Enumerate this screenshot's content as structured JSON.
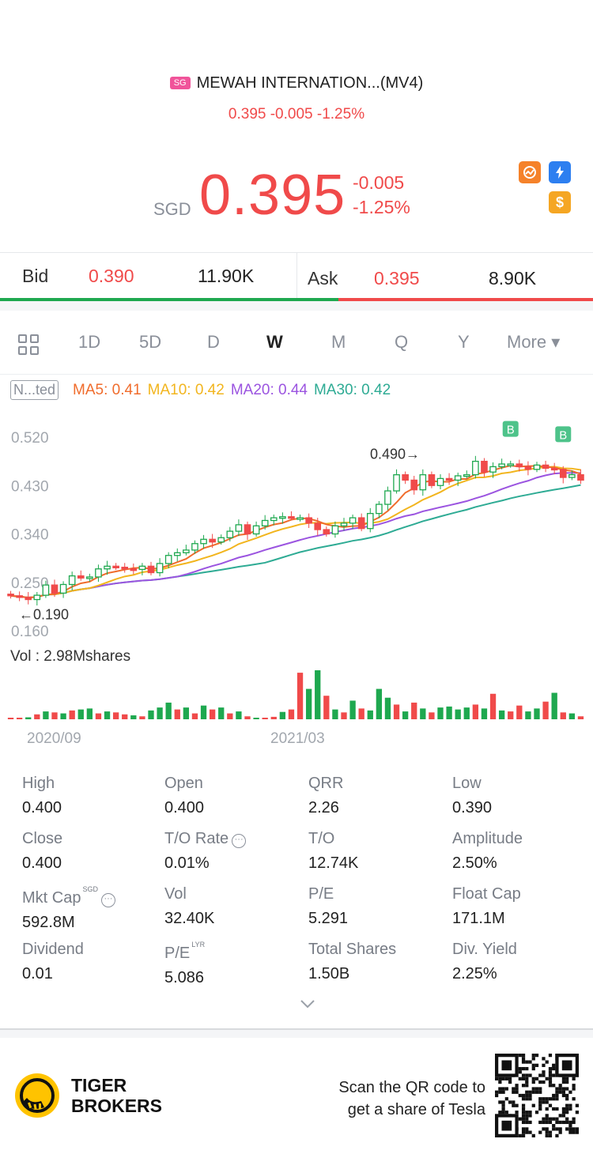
{
  "header": {
    "market_badge": "SG",
    "title": "MEWAH INTERNATION...(MV4)",
    "sub_price": "0.395 -0.005 -1.25%"
  },
  "quote": {
    "currency": "SGD",
    "price": "0.395",
    "change": "-0.005",
    "change_pct": "-1.25%"
  },
  "header_icons": [
    "chart-icon",
    "lightning-icon",
    "dollar-icon"
  ],
  "bid": {
    "label": "Bid",
    "price": "0.390",
    "volume": "11.90K"
  },
  "ask": {
    "label": "Ask",
    "price": "0.395",
    "volume": "8.90K"
  },
  "bid_ask_ratio": 0.571,
  "tabs": [
    {
      "label": "1D"
    },
    {
      "label": "5D"
    },
    {
      "label": "D"
    },
    {
      "label": "W"
    },
    {
      "label": "M"
    },
    {
      "label": "Q"
    },
    {
      "label": "Y"
    },
    {
      "label": "More ▾"
    }
  ],
  "active_tab": "W",
  "ma": {
    "adjust_label": "N...ted",
    "ma5": "MA5: 0.41",
    "ma10": "MA10: 0.42",
    "ma20": "MA20: 0.44",
    "ma30": "MA30: 0.42"
  },
  "colors": {
    "up": "#1ea84f",
    "down": "#f04a4a",
    "ma5": "#f06c2c",
    "ma10": "#f2b51e",
    "ma20": "#9b54e0",
    "ma30": "#2eab94"
  },
  "chart_data": {
    "type": "candlestick",
    "y_ticks": [
      "0.520",
      "0.430",
      "0.340",
      "0.250",
      "0.160"
    ],
    "ylim": [
      0.16,
      0.52
    ],
    "high_label": "0.490",
    "low_label": "0.190",
    "x_ticks": [
      "2020/09",
      "2021/03"
    ],
    "volume_label": "Vol  : 2.98Mshares",
    "trade_markers": [
      "B",
      "B"
    ],
    "weeks": 66,
    "closes": [
      0.225,
      0.222,
      0.218,
      0.226,
      0.245,
      0.23,
      0.246,
      0.262,
      0.258,
      0.26,
      0.275,
      0.28,
      0.278,
      0.275,
      0.274,
      0.28,
      0.268,
      0.285,
      0.3,
      0.305,
      0.31,
      0.322,
      0.33,
      0.325,
      0.333,
      0.345,
      0.357,
      0.34,
      0.355,
      0.365,
      0.37,
      0.372,
      0.37,
      0.37,
      0.36,
      0.348,
      0.34,
      0.355,
      0.36,
      0.37,
      0.35,
      0.378,
      0.395,
      0.42,
      0.45,
      0.44,
      0.422,
      0.45,
      0.43,
      0.443,
      0.44,
      0.448,
      0.45,
      0.475,
      0.455,
      0.465,
      0.47,
      0.47,
      0.465,
      0.46,
      0.468,
      0.462,
      0.46,
      0.445,
      0.45,
      0.44
    ],
    "volume": [
      0.02,
      0.01,
      0.04,
      0.1,
      0.16,
      0.14,
      0.12,
      0.18,
      0.2,
      0.22,
      0.12,
      0.16,
      0.14,
      0.1,
      0.08,
      0.06,
      0.18,
      0.24,
      0.34,
      0.2,
      0.24,
      0.12,
      0.28,
      0.2,
      0.24,
      0.12,
      0.16,
      0.06,
      0.03,
      0.03,
      0.05,
      0.15,
      0.2,
      0.95,
      0.62,
      1.0,
      0.48,
      0.2,
      0.14,
      0.38,
      0.22,
      0.18,
      0.62,
      0.44,
      0.3,
      0.16,
      0.34,
      0.22,
      0.14,
      0.24,
      0.26,
      0.2,
      0.24,
      0.3,
      0.22,
      0.52,
      0.18,
      0.16,
      0.28,
      0.16,
      0.22,
      0.36,
      0.54,
      0.14,
      0.12,
      0.06
    ],
    "volume_dir": [
      "d",
      "d",
      "u",
      "d",
      "u",
      "d",
      "u",
      "d",
      "u",
      "u",
      "d",
      "u",
      "d",
      "d",
      "u",
      "d",
      "u",
      "u",
      "u",
      "d",
      "u",
      "d",
      "u",
      "d",
      "u",
      "d",
      "u",
      "d",
      "u",
      "d",
      "d",
      "u",
      "d",
      "d",
      "u",
      "u",
      "d",
      "u",
      "d",
      "u",
      "d",
      "u",
      "u",
      "u",
      "d",
      "u",
      "d",
      "u",
      "d",
      "u",
      "u",
      "u",
      "u",
      "d",
      "u",
      "d",
      "u",
      "d",
      "d",
      "u",
      "u",
      "d",
      "u",
      "d",
      "u",
      "d"
    ]
  },
  "stats": [
    {
      "label": "High",
      "value": "0.400"
    },
    {
      "label": "Open",
      "value": "0.400"
    },
    {
      "label": "QRR",
      "value": "2.26"
    },
    {
      "label": "Low",
      "value": "0.390"
    },
    {
      "label": "Close",
      "value": "0.400"
    },
    {
      "label": "T/O Rate",
      "value": "0.01%"
    },
    {
      "label": "T/O",
      "value": "12.74K"
    },
    {
      "label": "Amplitude",
      "value": "2.50%"
    },
    {
      "label": "Mkt Cap",
      "value": "592.8M",
      "sup": "SGD"
    },
    {
      "label": "Vol",
      "value": "32.40K"
    },
    {
      "label": "P/E",
      "value": "5.291"
    },
    {
      "label": "Float Cap",
      "value": "171.1M"
    },
    {
      "label": "Dividend",
      "value": "0.01"
    },
    {
      "label": "P/E",
      "value": "5.086",
      "sup": "LYR"
    },
    {
      "label": "Total Shares",
      "value": "1.50B"
    },
    {
      "label": "Div. Yield",
      "value": "2.25%"
    }
  ],
  "footer": {
    "brand_line1": "TIGER",
    "brand_line2": "BROKERS",
    "promo_line1": "Scan the QR code to",
    "promo_line2": "get a share of Tesla"
  }
}
